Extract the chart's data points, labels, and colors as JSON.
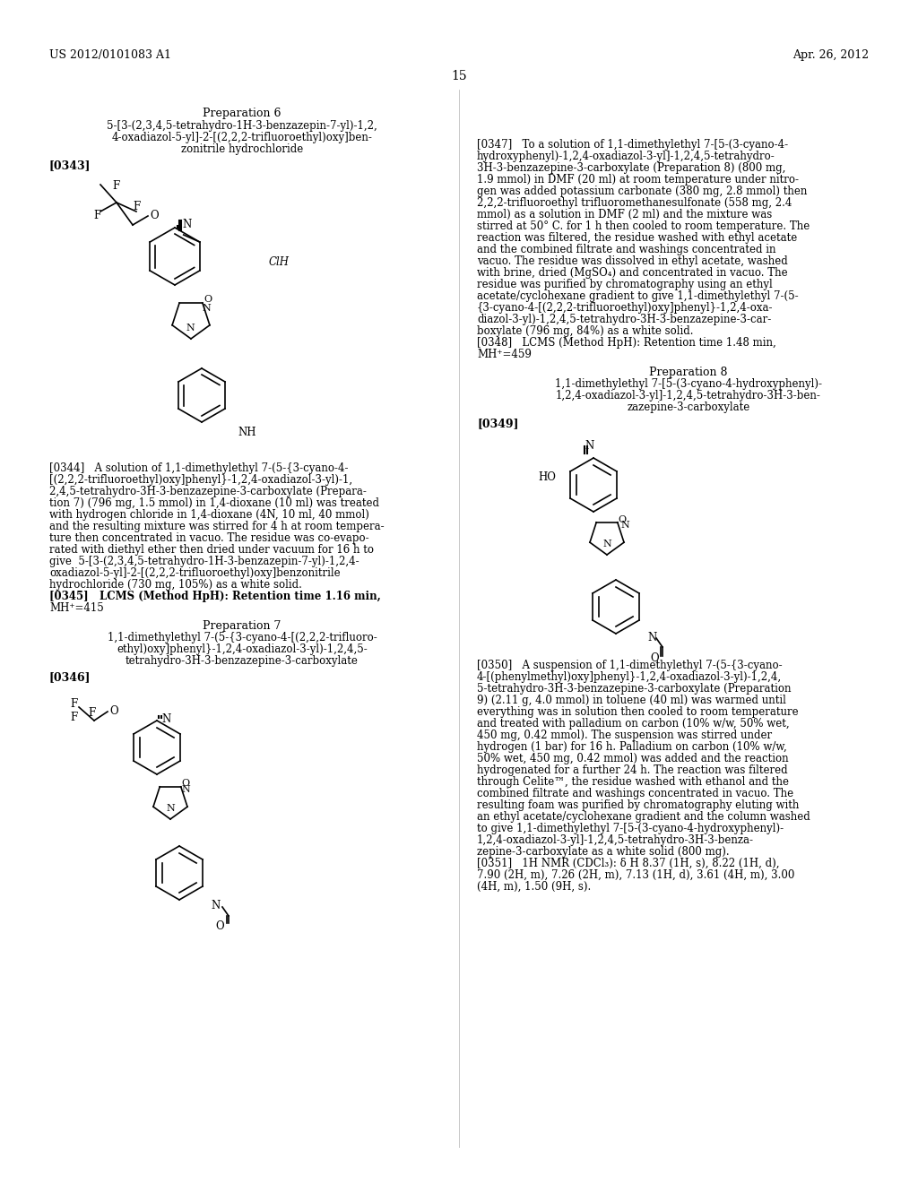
{
  "page_number": "15",
  "patent_number": "US 2012/0101083 A1",
  "patent_date": "Apr. 26, 2012",
  "background_color": "#ffffff",
  "text_color": "#000000",
  "prep6_title_lines": [
    "Preparation 6",
    "5-[3-(2,3,4,5-tetrahydro-1H-3-benzazepin-7-yl)-1,2,",
    "4-oxadiazol-5-yl]-2-[(2,2,2-trifluoroethyl)oxy]ben-",
    "zonitrile hydrochloride"
  ],
  "prep6_tag": "[0343]",
  "prep6_text_lines": [
    "[0344]   A solution of 1,1-dimethylethyl 7-(5-{3-cyano-4-",
    "[(2,2,2-trifluoroethyl)oxy]phenyl}-1,2,4-oxadiazol-3-yl)-1,",
    "2,4,5-tetrahydro-3H-3-benzazepine-3-carboxylate (Prepara-",
    "tion 7) (796 mg, 1.5 mmol) in 1,4-dioxane (10 ml) was treated",
    "with hydrogen chloride in 1,4-dioxane (4N, 10 ml, 40 mmol)",
    "and the resulting mixture was stirred for 4 h at room tempera-",
    "ture then concentrated in vacuo. The residue was co-evapo-",
    "rated with diethyl ether then dried under vacuum for 16 h to",
    "give  5-[3-(2,3,4,5-tetrahydro-1H-3-benzazepin-7-yl)-1,2,4-",
    "oxadiazol-5-yl]-2-[(2,2,2-trifluoroethyl)oxy]benzonitrile",
    "hydrochloride (730 mg, 105%) as a white solid."
  ],
  "prep6_lcms": "[0345]   LCMS (Method HpH): Retention time 1.16 min,",
  "prep6_mh": "MH⁺=415",
  "prep7_title_lines": [
    "Preparation 7",
    "1,1-dimethylethyl 7-(5-{3-cyano-4-[(2,2,2-trifluoro-",
    "ethyl)oxy]phenyl}-1,2,4-oxadiazol-3-yl)-1,2,4,5-",
    "tetrahydro-3H-3-benzazepine-3-carboxylate"
  ],
  "prep7_tag": "[0346]",
  "prep8_title_lines": [
    "Preparation 8",
    "1,1-dimethylethyl 7-[5-(3-cyano-4-hydroxyphenyl)-",
    "1,2,4-oxadiazol-3-yl]-1,2,4,5-tetrahydro-3H-3-ben-",
    "zazepine-3-carboxylate"
  ],
  "prep8_tag": "[0349]",
  "right_col_texts": [
    "[0347]   To a solution of 1,1-dimethylethyl 7-[5-(3-cyano-4-",
    "hydroxyphenyl)-1,2,4-oxadiazol-3-yl]-1,2,4,5-tetrahydro-",
    "3H-3-benzazepine-3-carboxylate (Preparation 8) (800 mg,",
    "1.9 mmol) in DMF (20 ml) at room temperature under nitro-",
    "gen was added potassium carbonate (380 mg, 2.8 mmol) then",
    "2,2,2-trifluoroethyl trifluoromethanesulfonate (558 mg, 2.4",
    "mmol) as a solution in DMF (2 ml) and the mixture was",
    "stirred at 50° C. for 1 h then cooled to room temperature. The",
    "reaction was filtered, the residue washed with ethyl acetate",
    "and the combined filtrate and washings concentrated in",
    "vacuo. The residue was dissolved in ethyl acetate, washed",
    "with brine, dried (MgSO₄) and concentrated in vacuo. The",
    "residue was purified by chromatography using an ethyl",
    "acetate/cyclohexane gradient to give 1,1-dimethylethyl 7-(5-",
    "{3-cyano-4-[(2,2,2-trifluoroethyl)oxy]phenyl}-1,2,4-oxa-",
    "diazol-3-yl)-1,2,4,5-tetrahydro-3H-3-benzazepine-3-car-",
    "boxylate (796 mg, 84%) as a white solid."
  ],
  "right_lcms": "[0348]   LCMS (Method HpH): Retention time 1.48 min,",
  "right_mh": "MH⁺=459",
  "right_col_texts2": [
    "[0350]   A suspension of 1,1-dimethylethyl 7-(5-{3-cyano-",
    "4-[(phenylmethyl)oxy]phenyl}-1,2,4-oxadiazol-3-yl)-1,2,4,",
    "5-tetrahydro-3H-3-benzazepine-3-carboxylate (Preparation",
    "9) (2.11 g, 4.0 mmol) in toluene (40 ml) was warmed until",
    "everything was in solution then cooled to room temperature",
    "and treated with palladium on carbon (10% w/w, 50% wet,",
    "450 mg, 0.42 mmol). The suspension was stirred under",
    "hydrogen (1 bar) for 16 h. Palladium on carbon (10% w/w,",
    "50% wet, 450 mg, 0.42 mmol) was added and the reaction",
    "hydrogenated for a further 24 h. The reaction was filtered",
    "through Celite™, the residue washed with ethanol and the",
    "combined filtrate and washings concentrated in vacuo. The",
    "resulting foam was purified by chromatography eluting with",
    "an ethyl acetate/cyclohexane gradient and the column washed",
    "to give 1,1-dimethylethyl 7-[5-(3-cyano-4-hydroxyphenyl)-",
    "1,2,4-oxadiazol-3-yl]-1,2,4,5-tetrahydro-3H-3-benza-",
    "zepine-3-carboxylate as a white solid (800 mg)."
  ],
  "right_nmr": "[0351]   1H NMR (CDCl₃): δ H 8.37 (1H, s), 8.22 (1H, d),",
  "right_nmr2": "7.90 (2H, m), 7.26 (2H, m), 7.13 (1H, d), 3.61 (4H, m), 3.00",
  "right_nmr3": "(4H, m), 1.50 (9H, s)."
}
